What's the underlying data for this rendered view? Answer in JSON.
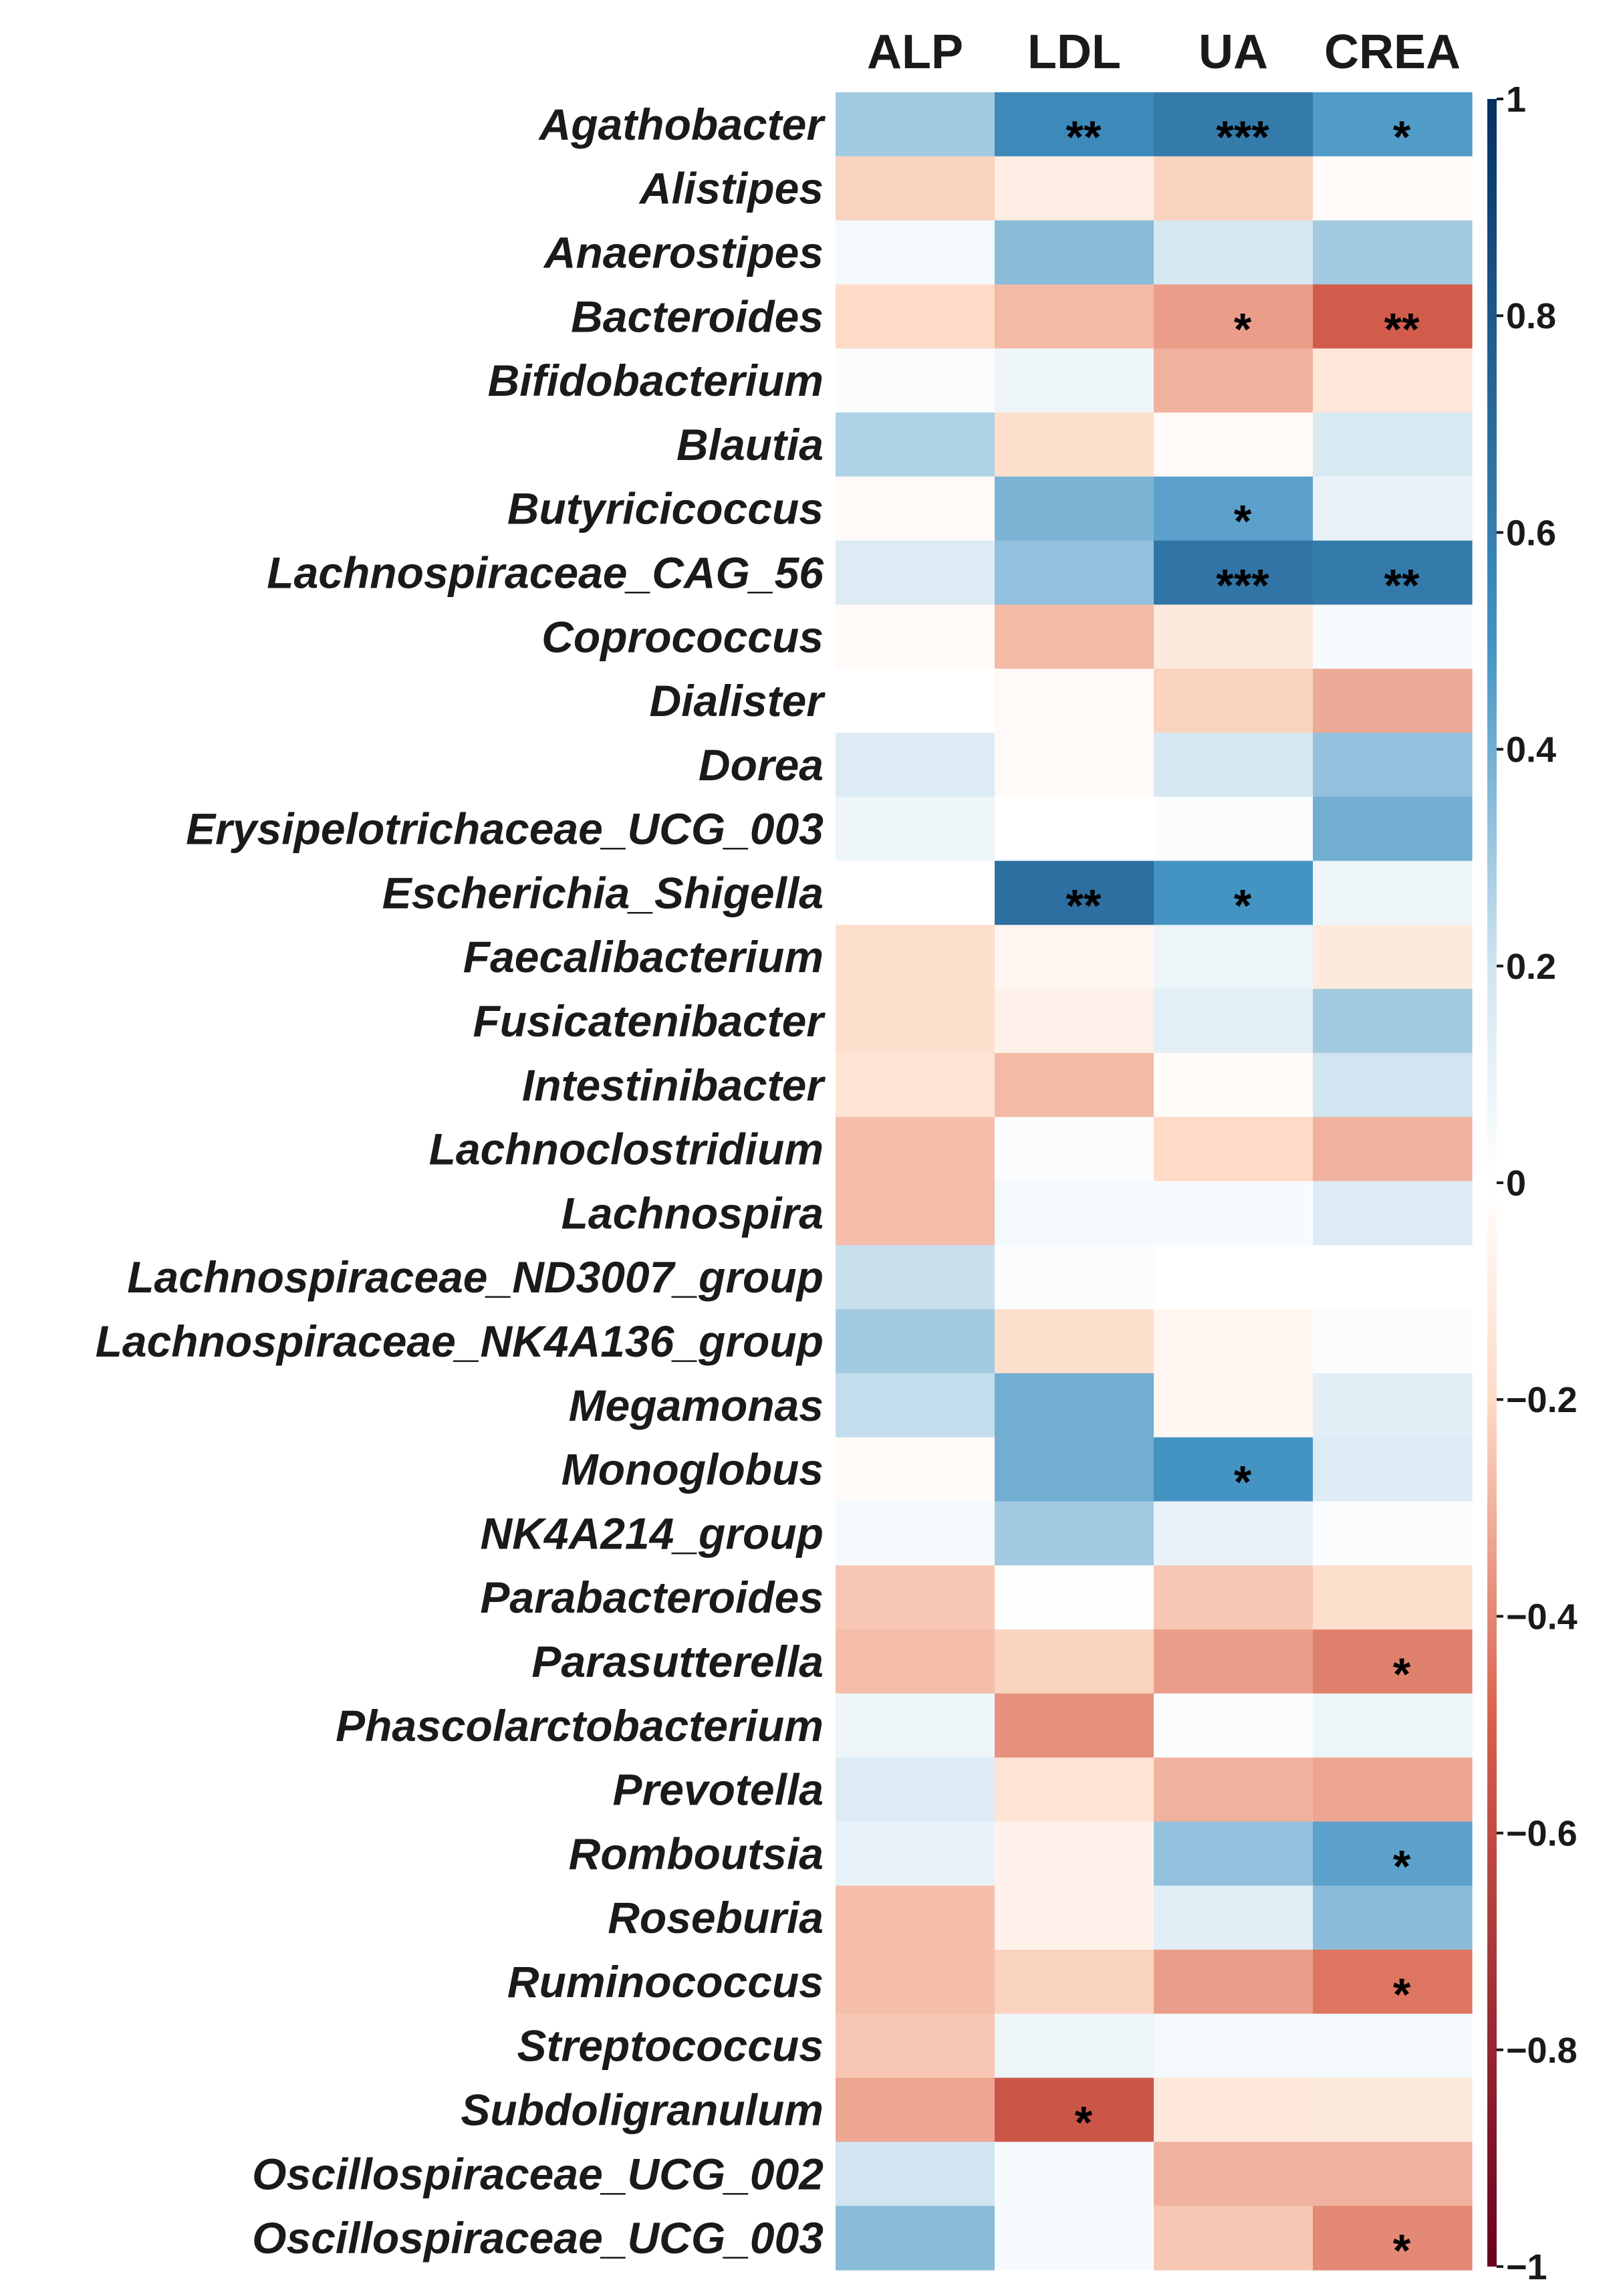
{
  "chart_data": {
    "type": "heatmap",
    "columns": [
      "ALP",
      "LDL",
      "UA",
      "CREA"
    ],
    "rows": [
      "Agathobacter",
      "Alistipes",
      "Anaerostipes",
      "Bacteroides",
      "Bifidobacterium",
      "Blautia",
      "Butyricicoccus",
      "Lachnospiraceae_CAG_56",
      "Coprococcus",
      "Dialister",
      "Dorea",
      "Erysipelotrichaceae_UCG_003",
      "Escherichia_Shigella",
      "Faecalibacterium",
      "Fusicatenibacter",
      "Intestinibacter",
      "Lachnoclostridium",
      "Lachnospira",
      "Lachnospiraceae_ND3007_group",
      "Lachnospiraceae_NK4A136_group",
      "Megamonas",
      "Monoglobus",
      "NK4A214_group",
      "Parabacteroides",
      "Parasutterella",
      "Phascolarctobacterium",
      "Prevotella",
      "Romboutsia",
      "Roseburia",
      "Ruminococcus",
      "Streptococcus",
      "Subdoligranulum",
      "Oscillospiraceae_UCG_002",
      "Oscillospiraceae_UCG_003"
    ],
    "values": [
      [
        0.3,
        0.55,
        0.62,
        0.47
      ],
      [
        -0.22,
        -0.1,
        -0.22,
        -0.03
      ],
      [
        0.05,
        0.35,
        0.18,
        0.3
      ],
      [
        -0.2,
        -0.28,
        -0.35,
        -0.52
      ],
      [
        0.02,
        0.08,
        -0.3,
        -0.14
      ],
      [
        0.27,
        -0.18,
        -0.03,
        0.17
      ],
      [
        -0.03,
        0.38,
        0.45,
        0.1
      ],
      [
        0.15,
        0.33,
        0.65,
        0.62
      ],
      [
        -0.03,
        -0.28,
        -0.12,
        0.03
      ],
      [
        0.0,
        -0.03,
        -0.22,
        -0.32
      ],
      [
        0.15,
        -0.03,
        0.18,
        0.33
      ],
      [
        0.08,
        0.0,
        0.02,
        0.4
      ],
      [
        0.0,
        0.68,
        0.5,
        0.07
      ],
      [
        -0.18,
        -0.05,
        0.08,
        -0.12
      ],
      [
        -0.18,
        -0.08,
        0.12,
        0.3
      ],
      [
        -0.15,
        -0.28,
        -0.02,
        0.2
      ],
      [
        -0.27,
        0.02,
        -0.2,
        -0.3
      ],
      [
        -0.27,
        0.05,
        0.03,
        0.15
      ],
      [
        0.22,
        0.02,
        0.0,
        0.0
      ],
      [
        0.3,
        -0.18,
        -0.05,
        0.02
      ],
      [
        0.23,
        0.4,
        -0.05,
        0.13
      ],
      [
        -0.03,
        0.4,
        0.5,
        0.15
      ],
      [
        0.05,
        0.3,
        0.1,
        0.02
      ],
      [
        -0.25,
        0.01,
        -0.25,
        -0.18
      ],
      [
        -0.27,
        -0.22,
        -0.35,
        -0.42
      ],
      [
        0.07,
        -0.38,
        0.02,
        0.08
      ],
      [
        0.15,
        -0.15,
        -0.3,
        -0.33
      ],
      [
        0.1,
        -0.07,
        0.33,
        0.45
      ],
      [
        -0.27,
        -0.07,
        0.13,
        0.35
      ],
      [
        -0.27,
        -0.22,
        -0.35,
        -0.45
      ],
      [
        -0.25,
        0.08,
        0.05,
        0.05
      ],
      [
        -0.33,
        -0.55,
        -0.13,
        -0.12
      ],
      [
        0.2,
        0.03,
        -0.3,
        -0.3
      ],
      [
        0.35,
        0.03,
        -0.25,
        -0.4
      ]
    ],
    "significance": [
      [
        "",
        "**",
        "***",
        "*"
      ],
      [
        "",
        "",
        "",
        ""
      ],
      [
        "",
        "",
        "",
        ""
      ],
      [
        "",
        "",
        "*",
        "**"
      ],
      [
        "",
        "",
        "",
        ""
      ],
      [
        "",
        "",
        "",
        ""
      ],
      [
        "",
        "",
        "*",
        ""
      ],
      [
        "",
        "",
        "***",
        "**"
      ],
      [
        "",
        "",
        "",
        ""
      ],
      [
        "",
        "",
        "",
        ""
      ],
      [
        "",
        "",
        "",
        ""
      ],
      [
        "",
        "",
        "",
        ""
      ],
      [
        "",
        "**",
        "*",
        ""
      ],
      [
        "",
        "",
        "",
        ""
      ],
      [
        "",
        "",
        "",
        ""
      ],
      [
        "",
        "",
        "",
        ""
      ],
      [
        "",
        "",
        "",
        ""
      ],
      [
        "",
        "",
        "",
        ""
      ],
      [
        "",
        "",
        "",
        ""
      ],
      [
        "",
        "",
        "",
        ""
      ],
      [
        "",
        "",
        "",
        ""
      ],
      [
        "",
        "",
        "*",
        ""
      ],
      [
        "",
        "",
        "",
        ""
      ],
      [
        "",
        "",
        "",
        ""
      ],
      [
        "",
        "",
        "",
        "*"
      ],
      [
        "",
        "",
        "",
        ""
      ],
      [
        "",
        "",
        "",
        ""
      ],
      [
        "",
        "",
        "",
        "*"
      ],
      [
        "",
        "",
        "",
        ""
      ],
      [
        "",
        "",
        "",
        "*"
      ],
      [
        "",
        "",
        "",
        ""
      ],
      [
        "",
        "*",
        "",
        ""
      ],
      [
        "",
        "",
        "",
        ""
      ],
      [
        "",
        "",
        "",
        "*"
      ]
    ],
    "colorbar": {
      "range": [
        -1,
        1
      ],
      "ticks": [
        1,
        0.8,
        0.6,
        0.4,
        0.2,
        0,
        -0.2,
        -0.4,
        -0.6,
        -0.8,
        -1
      ],
      "tick_labels": [
        "1",
        "0.8",
        "0.6",
        "0.4",
        "0.2",
        "0",
        "−0.2",
        "−0.4",
        "−0.6",
        "−0.8",
        "−1"
      ]
    },
    "palette": {
      "neg_dark": "#67001f",
      "neg_mid": "#d6604d",
      "neg_light": "#fddbc7",
      "neutral": "#ffffff",
      "pos_light": "#d1e5f0",
      "pos_mid": "#4393c3",
      "pos_dark": "#053061"
    }
  }
}
